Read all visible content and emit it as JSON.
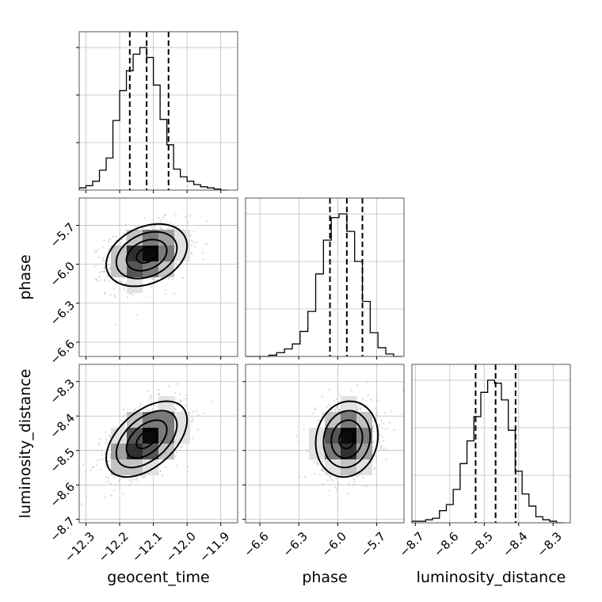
{
  "chart_data": {
    "type": "corner",
    "parameters": [
      {
        "name": "geocent_time",
        "label": "geocent_time",
        "range": [
          -12.32,
          -11.85
        ],
        "ticks": [
          -12.3,
          -12.2,
          -12.1,
          -12.0,
          -11.9
        ],
        "tick_labels": [
          "−12.3",
          "−12.2",
          "−12.1",
          "−12.0",
          "−11.9"
        ],
        "quantiles": [
          -12.17,
          -12.12,
          -12.055
        ]
      },
      {
        "name": "phase",
        "label": "phase",
        "range": [
          -6.71,
          -5.49
        ],
        "ticks": [
          -6.6,
          -6.3,
          -6.0,
          -5.7
        ],
        "tick_labels": [
          "−6.6",
          "−6.3",
          "−6.0",
          "−5.7"
        ],
        "quantiles": [
          -6.06,
          -5.93,
          -5.81
        ]
      },
      {
        "name": "luminosity_distance",
        "label": "luminosity_distance",
        "range": [
          -8.71,
          -8.25
        ],
        "ticks": [
          -8.7,
          -8.6,
          -8.5,
          -8.4,
          -8.3
        ],
        "tick_labels": [
          "−8.7",
          "−8.6",
          "−8.5",
          "−8.4",
          "−8.3"
        ],
        "quantiles": [
          -8.525,
          -8.467,
          -8.409
        ]
      }
    ],
    "histograms": [
      {
        "param": "geocent_time",
        "bin_edges": [
          -12.32,
          -12.3,
          -12.28,
          -12.26,
          -12.24,
          -12.22,
          -12.2,
          -12.18,
          -12.16,
          -12.14,
          -12.12,
          -12.1,
          -12.08,
          -12.06,
          -12.04,
          -12.02,
          -12.0,
          -11.98,
          -11.96,
          -11.94,
          -11.92,
          -11.9,
          -11.88
        ],
        "counts": [
          2,
          4,
          8,
          18,
          29,
          63,
          90,
          108,
          123,
          129,
          120,
          95,
          64,
          41,
          19,
          12,
          8,
          5,
          3,
          2,
          1,
          0
        ]
      },
      {
        "param": "phase",
        "bin_edges": [
          -6.71,
          -6.65,
          -6.59,
          -6.53,
          -6.47,
          -6.41,
          -6.35,
          -6.29,
          -6.23,
          -6.17,
          -6.11,
          -6.05,
          -5.99,
          -5.93,
          -5.87,
          -5.81,
          -5.75,
          -5.69,
          -5.63,
          -5.57,
          -5.51
        ],
        "counts": [
          0,
          0,
          0,
          1,
          3,
          6,
          10,
          20,
          36,
          66,
          93,
          111,
          114,
          100,
          76,
          44,
          19,
          7,
          2,
          0
        ]
      },
      {
        "param": "luminosity_distance",
        "bin_edges": [
          -8.71,
          -8.69,
          -8.67,
          -8.65,
          -8.63,
          -8.61,
          -8.59,
          -8.57,
          -8.55,
          -8.53,
          -8.51,
          -8.49,
          -8.47,
          -8.45,
          -8.43,
          -8.41,
          -8.39,
          -8.37,
          -8.35,
          -8.33,
          -8.31,
          -8.29,
          -8.27
        ],
        "counts": [
          1,
          1,
          2,
          3,
          8,
          12,
          22,
          39,
          54,
          70,
          86,
          94,
          92,
          81,
          61,
          34,
          19,
          11,
          4,
          2,
          1,
          0
        ]
      }
    ],
    "pairs": [
      {
        "x": "geocent_time",
        "y": "phase",
        "mean": [
          -12.12,
          -5.93
        ],
        "std": [
          0.06,
          0.12
        ],
        "corr": 0.3
      },
      {
        "x": "geocent_time",
        "y": "luminosity_distance",
        "mean": [
          -12.12,
          -8.467
        ],
        "std": [
          0.06,
          0.055
        ],
        "corr": 0.5
      },
      {
        "x": "phase",
        "y": "luminosity_distance",
        "mean": [
          -5.93,
          -8.467
        ],
        "std": [
          0.12,
          0.055
        ],
        "corr": 0.1
      }
    ],
    "contour_levels_sigma": [
      0.5,
      1.0,
      1.5,
      2.0
    ],
    "grid": true,
    "colors": {
      "hist": "#000000",
      "points": "#b0b0b0",
      "density_min": "#ffffff",
      "density_max": "#000000",
      "grid": "#bdbdbd"
    }
  }
}
